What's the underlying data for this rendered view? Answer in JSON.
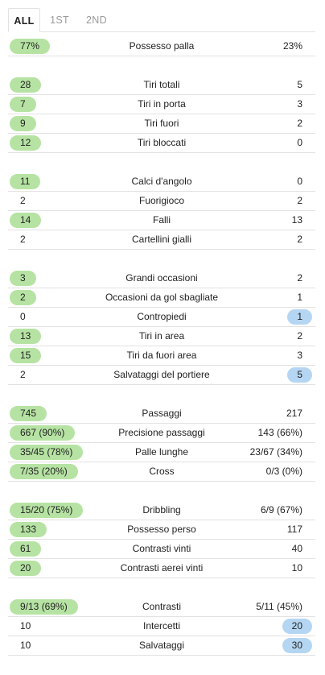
{
  "tabs": [
    "ALL",
    "1ST",
    "2ND"
  ],
  "active_tab": 0,
  "groups": [
    {
      "rows": [
        {
          "home": "77%",
          "label": "Possesso palla",
          "away": "23%",
          "winner": "home"
        }
      ]
    },
    {
      "rows": [
        {
          "home": "28",
          "label": "Tiri totali",
          "away": "5",
          "winner": "home"
        },
        {
          "home": "7",
          "label": "Tiri in porta",
          "away": "3",
          "winner": "home"
        },
        {
          "home": "9",
          "label": "Tiri fuori",
          "away": "2",
          "winner": "home"
        },
        {
          "home": "12",
          "label": "Tiri bloccati",
          "away": "0",
          "winner": "home"
        }
      ]
    },
    {
      "rows": [
        {
          "home": "11",
          "label": "Calci d'angolo",
          "away": "0",
          "winner": "home"
        },
        {
          "home": "2",
          "label": "Fuorigioco",
          "away": "2",
          "winner": "none"
        },
        {
          "home": "14",
          "label": "Falli",
          "away": "13",
          "winner": "home"
        },
        {
          "home": "2",
          "label": "Cartellini gialli",
          "away": "2",
          "winner": "none"
        }
      ]
    },
    {
      "rows": [
        {
          "home": "3",
          "label": "Grandi occasioni",
          "away": "2",
          "winner": "home"
        },
        {
          "home": "2",
          "label": "Occasioni da gol sbagliate",
          "away": "1",
          "winner": "home"
        },
        {
          "home": "0",
          "label": "Contropiedi",
          "away": "1",
          "winner": "away"
        },
        {
          "home": "13",
          "label": "Tiri in area",
          "away": "2",
          "winner": "home"
        },
        {
          "home": "15",
          "label": "Tiri da fuori area",
          "away": "3",
          "winner": "home"
        },
        {
          "home": "2",
          "label": "Salvataggi del portiere",
          "away": "5",
          "winner": "away"
        }
      ]
    },
    {
      "rows": [
        {
          "home": "745",
          "label": "Passaggi",
          "away": "217",
          "winner": "home"
        },
        {
          "home": "667 (90%)",
          "label": "Precisione passaggi",
          "away": "143 (66%)",
          "winner": "home"
        },
        {
          "home": "35/45 (78%)",
          "label": "Palle lunghe",
          "away": "23/67 (34%)",
          "winner": "home"
        },
        {
          "home": "7/35 (20%)",
          "label": "Cross",
          "away": "0/3 (0%)",
          "winner": "home"
        }
      ]
    },
    {
      "rows": [
        {
          "home": "15/20 (75%)",
          "label": "Dribbling",
          "away": "6/9 (67%)",
          "winner": "home"
        },
        {
          "home": "133",
          "label": "Possesso perso",
          "away": "117",
          "winner": "home"
        },
        {
          "home": "61",
          "label": "Contrasti vinti",
          "away": "40",
          "winner": "home"
        },
        {
          "home": "20",
          "label": "Contrasti aerei vinti",
          "away": "10",
          "winner": "home"
        }
      ]
    },
    {
      "rows": [
        {
          "home": "9/13 (69%)",
          "label": "Contrasti",
          "away": "5/11 (45%)",
          "winner": "home"
        },
        {
          "home": "10",
          "label": "Intercetti",
          "away": "20",
          "winner": "away"
        },
        {
          "home": "10",
          "label": "Salvataggi",
          "away": "30",
          "winner": "away"
        }
      ]
    }
  ],
  "colors": {
    "home_highlight": "#b6e3a3",
    "away_highlight": "#b5d6f3",
    "divider": "#e2e2e2",
    "tab_inactive": "#9a9a9a"
  }
}
